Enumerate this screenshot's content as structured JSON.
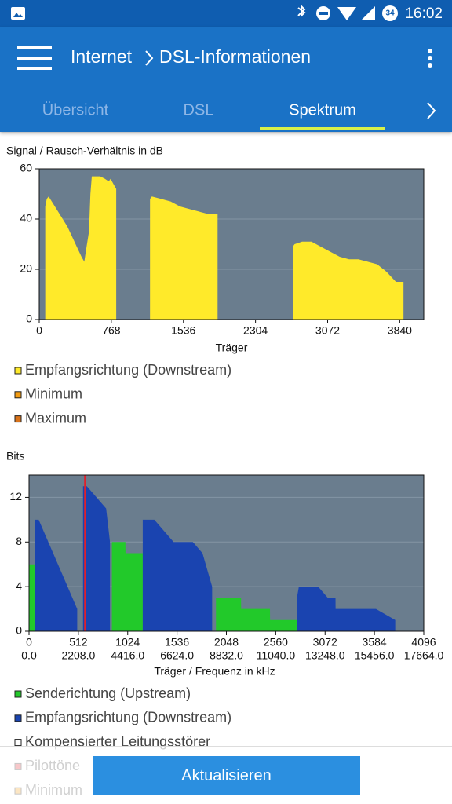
{
  "status_bar": {
    "time": "16:02",
    "battery": "34"
  },
  "app_bar": {
    "title_parent": "Internet",
    "title": "DSL-Informationen"
  },
  "tabs": [
    "Übersicht",
    "DSL",
    "Spektrum"
  ],
  "active_tab": 2,
  "chart_data": [
    {
      "type": "area",
      "title": "Signal / Rausch-Verhältnis in dB",
      "xlabel": "Träger",
      "xlim": [
        0,
        4096
      ],
      "ylim": [
        0,
        60
      ],
      "xticks": [
        0,
        768,
        1536,
        2304,
        3072,
        3840
      ],
      "yticks": [
        0,
        20,
        40,
        60
      ],
      "grid": true,
      "background": "#6a7d8e",
      "series": [
        {
          "color": "#ffea2a",
          "x": [
            64,
            80,
            100,
            150,
            200,
            250,
            300,
            350,
            400,
            450,
            480,
            500,
            530,
            545,
            560,
            600,
            650,
            700,
            740,
            760,
            790,
            820,
            1000,
            1180,
            1200,
            1300,
            1400,
            1500,
            1600,
            1700,
            1800,
            1900,
            2300,
            2700,
            2720,
            2800,
            2900,
            3000,
            3100,
            3200,
            3300,
            3400,
            3500,
            3600,
            3700,
            3800,
            3880
          ],
          "values": [
            45,
            48,
            49,
            46,
            43,
            40,
            37,
            33,
            29,
            25,
            23,
            28,
            35,
            50,
            57,
            57,
            57,
            56,
            55,
            56,
            54,
            52,
            null,
            48,
            49,
            48,
            47,
            45,
            44,
            43,
            42,
            42,
            null,
            29,
            30,
            31,
            31,
            29,
            27,
            25,
            24,
            24,
            23,
            22,
            19,
            15,
            15
          ]
        }
      ],
      "legend": [
        {
          "label": "Empfangsrichtung (Downstream)",
          "color": "#ffea2a"
        },
        {
          "label": "Minimum",
          "color": "#f39c12"
        },
        {
          "label": "Maximum",
          "color": "#d9731a"
        }
      ]
    },
    {
      "type": "area",
      "title": "Bits",
      "xlabel": "Träger / Frequenz in kHz",
      "xlim": [
        0,
        4096
      ],
      "ylim": [
        0,
        14
      ],
      "xticks": [
        0,
        512,
        1024,
        1536,
        2048,
        2560,
        3072,
        3584,
        4096
      ],
      "xtick_freq": [
        "0.0",
        "2208.0",
        "4416.0",
        "6624.0",
        "8832.0",
        "11040.0",
        "13248.0",
        "15456.0",
        "17664.0"
      ],
      "yticks": [
        0,
        4,
        8,
        12
      ],
      "grid": true,
      "background": "#6a7d8e",
      "pilot_x": 580,
      "pilot_color": "#e0202a",
      "series": [
        {
          "color": "#22c92a",
          "x": [
            0,
            60,
            400,
            860,
            1000,
            1001,
            1180,
            1500,
            1940,
            2200,
            2201,
            2500,
            2501,
            2780
          ],
          "values": [
            6,
            6,
            null,
            8,
            8,
            7,
            7,
            null,
            3,
            3,
            2,
            2,
            1,
            1
          ]
        },
        {
          "color": "#1a44b0",
          "x": [
            64,
            100,
            150,
            200,
            250,
            300,
            350,
            400,
            450,
            500,
            530,
            560,
            600,
            700,
            800,
            840,
            1000,
            1180,
            1300,
            1400,
            1500,
            1600,
            1700,
            1800,
            1900,
            2300,
            2780,
            2800,
            3000,
            3100,
            3180,
            3181,
            3500,
            3600,
            3800
          ],
          "values": [
            10,
            10,
            9,
            8,
            7,
            6,
            5,
            4,
            3,
            2,
            null,
            13,
            13,
            12,
            11,
            8,
            null,
            10,
            10,
            9,
            8,
            8,
            8,
            7,
            4,
            null,
            3,
            4,
            4,
            3,
            3,
            2,
            2,
            2,
            1
          ]
        }
      ],
      "legend": [
        {
          "label": "Senderichtung (Upstream)",
          "color": "#22c92a"
        },
        {
          "label": "Empfangsrichtung (Downstream)",
          "color": "#1a44b0"
        },
        {
          "label": "Kompensierter Leitungsstörer",
          "color": "#ffffff"
        },
        {
          "label": "Pilottöne",
          "color": "#e0202a"
        },
        {
          "label": "Minimum",
          "color": "#f39c12"
        }
      ]
    }
  ],
  "button": "Aktualisieren"
}
